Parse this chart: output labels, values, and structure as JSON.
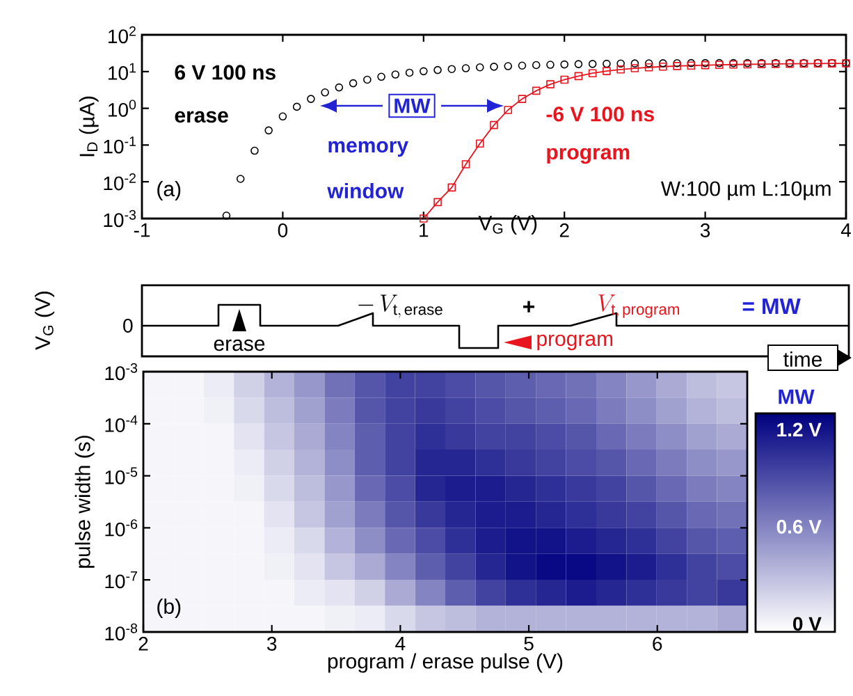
{
  "chart_data": [
    {
      "type": "scatter",
      "xlabel": "V$_{G}$ (V)",
      "ylabel": "I$_{D}$ (µA)",
      "log": "y",
      "xlim": [
        -1,
        4
      ],
      "ylim": [
        0.001,
        100
      ],
      "xticks": [
        -1,
        0,
        1,
        2,
        3,
        4
      ],
      "yticks": [
        {
          "value": 0.001,
          "label": "10$^{-3}$"
        },
        {
          "value": 0.01,
          "label": "10$^{-2}$"
        },
        {
          "value": 0.1,
          "label": "10$^{-1}$"
        },
        {
          "value": 1,
          "label": "10$^{0}$"
        },
        {
          "value": 10,
          "label": "10$^{1}$"
        },
        {
          "value": 100,
          "label": "10$^{2}$"
        }
      ],
      "series": [
        {
          "type": "scatter",
          "marker": "circle",
          "color": "#000000",
          "x": [
            -0.4,
            -0.3,
            -0.2,
            -0.1,
            0,
            0.1,
            0.2,
            0.3,
            0.4,
            0.5,
            0.6,
            0.7,
            0.8,
            0.9,
            1.0,
            1.1,
            1.2,
            1.3,
            1.4,
            1.5,
            1.6,
            1.7,
            1.8,
            1.9,
            2.0,
            2.1,
            2.2,
            2.3,
            2.4,
            2.5,
            2.6,
            2.7,
            2.8,
            2.9,
            3.0,
            3.1,
            3.2,
            3.3,
            3.4,
            3.5,
            3.6,
            3.7,
            3.8,
            3.9,
            4.0
          ],
          "values": [
            0.0012,
            0.012,
            0.07,
            0.25,
            0.6,
            1.1,
            1.8,
            2.7,
            3.7,
            4.8,
            6,
            7.2,
            8.3,
            9.3,
            10.2,
            11,
            11.7,
            12.3,
            13,
            13.5,
            14,
            14.5,
            15,
            15.3,
            15.6,
            15.9,
            16.1,
            16.3,
            16.5,
            16.6,
            16.7,
            16.8,
            16.9,
            17,
            17,
            17,
            17,
            17,
            17,
            17,
            17,
            17,
            17,
            17,
            17
          ]
        },
        {
          "type": "line",
          "marker": "square",
          "line_style": "solid",
          "color": "#e8141e",
          "x": [
            1.0,
            1.1,
            1.2,
            1.3,
            1.4,
            1.5,
            1.6,
            1.7,
            1.8,
            1.9,
            2.0,
            2.1,
            2.2,
            2.3,
            2.4,
            2.5,
            2.6,
            2.7,
            2.8,
            2.9,
            3.0,
            3.1,
            3.2,
            3.3,
            3.4,
            3.5,
            3.6,
            3.7,
            3.8,
            3.9,
            4.0
          ],
          "values": [
            0.001,
            0.0028,
            0.007,
            0.03,
            0.11,
            0.35,
            0.9,
            1.8,
            3,
            4.5,
            6,
            7.5,
            9,
            10.3,
            11.4,
            12.3,
            13,
            13.6,
            14.1,
            14.5,
            14.9,
            15.2,
            15.5,
            15.7,
            15.9,
            16.1,
            16.3,
            16.4,
            16.5,
            16.6,
            16.7
          ]
        }
      ],
      "annotations": [
        "6 V 100 ns",
        "erase",
        "MW",
        "memory",
        "window",
        "-6 V 100 ns",
        "program",
        "W:100 µm L:10µm",
        "(a)"
      ]
    },
    {
      "type": "other",
      "ylabel": "V$_{G}$ (V)",
      "annotations": [
        "0",
        "erase",
        "-\\,V_{\\mathrm{t,\\,erase}}",
        "+",
        "V_{\\mathrm{t,\\,program}}",
        "= MW",
        "program",
        "time"
      ]
    },
    {
      "type": "heatmap",
      "xlabel": "program / erase pulse (V)",
      "ylabel": "pulse width (s)",
      "clabel": "MW",
      "log": "y",
      "xlim": [
        2,
        6.7
      ],
      "ylim": [
        1e-08,
        0.001
      ],
      "xticks": [
        2,
        3,
        4,
        5,
        6
      ],
      "yticks": [
        {
          "value": 1e-08,
          "label": "10$^{-8}$"
        },
        {
          "value": 1e-07,
          "label": "10$^{-7}$"
        },
        {
          "value": 1e-06,
          "label": "10$^{-6}$"
        },
        {
          "value": 1e-05,
          "label": "10$^{-5}$"
        },
        {
          "value": 0.0001,
          "label": "10$^{-4}$"
        },
        {
          "value": 0.001,
          "label": "10$^{-3}$"
        }
      ],
      "clim": [
        -0.05,
        1.3
      ],
      "cticks": [
        {
          "value": 0,
          "label": "0 V"
        },
        {
          "value": 0.6,
          "label": "0.6 V"
        },
        {
          "value": 1.2,
          "label": "1.2 V"
        }
      ],
      "x": [
        2.12,
        2.35,
        2.59,
        2.82,
        3.06,
        3.29,
        3.53,
        3.76,
        4.0,
        4.23,
        4.47,
        4.7,
        4.94,
        5.17,
        5.41,
        5.64,
        5.88,
        6.11,
        6.35,
        6.58
      ],
      "y": [
        0.00056,
        0.00018,
        5.6e-05,
        1.8e-05,
        5.6e-06,
        1.8e-06,
        5.6e-07,
        1.8e-07,
        5.6e-08,
        1.8e-08
      ],
      "cells": [
        [
          0,
          0,
          0.05,
          0.2,
          0.35,
          0.5,
          0.7,
          0.85,
          0.95,
          0.95,
          0.9,
          0.85,
          0.8,
          0.75,
          0.7,
          0.6,
          0.5,
          0.4,
          0.3,
          0.25
        ],
        [
          0,
          0,
          0.03,
          0.15,
          0.3,
          0.45,
          0.65,
          0.85,
          0.95,
          1.0,
          0.95,
          0.9,
          0.85,
          0.8,
          0.75,
          0.65,
          0.55,
          0.45,
          0.35,
          0.3
        ],
        [
          0,
          0,
          0,
          0.1,
          0.25,
          0.4,
          0.6,
          0.8,
          0.95,
          1.05,
          1.0,
          0.95,
          0.95,
          0.9,
          0.85,
          0.75,
          0.65,
          0.55,
          0.45,
          0.4
        ],
        [
          0,
          0,
          0,
          0.05,
          0.2,
          0.35,
          0.55,
          0.8,
          0.95,
          1.1,
          1.1,
          1.05,
          1.0,
          0.95,
          0.9,
          0.85,
          0.75,
          0.65,
          0.55,
          0.5
        ],
        [
          0,
          0,
          0,
          0.03,
          0.15,
          0.3,
          0.5,
          0.75,
          0.9,
          1.1,
          1.15,
          1.15,
          1.1,
          1.05,
          1.0,
          0.95,
          0.85,
          0.75,
          0.65,
          0.6
        ],
        [
          0,
          0,
          0,
          0,
          0.1,
          0.25,
          0.45,
          0.65,
          0.85,
          1.0,
          1.1,
          1.15,
          1.15,
          1.1,
          1.05,
          1.0,
          0.95,
          0.85,
          0.75,
          0.7
        ],
        [
          0,
          0,
          0,
          0,
          0.05,
          0.15,
          0.35,
          0.55,
          0.75,
          0.9,
          1.05,
          1.15,
          1.2,
          1.2,
          1.15,
          1.1,
          1.05,
          0.95,
          0.85,
          0.8
        ],
        [
          0,
          0,
          0,
          0,
          0.03,
          0.1,
          0.25,
          0.4,
          0.6,
          0.8,
          0.95,
          1.1,
          1.2,
          1.25,
          1.25,
          1.2,
          1.15,
          1.05,
          0.95,
          0.9
        ],
        [
          0,
          0,
          0,
          0,
          0,
          0.05,
          0.1,
          0.2,
          0.4,
          0.6,
          0.8,
          0.95,
          1.05,
          1.1,
          1.15,
          1.1,
          1.05,
          1.0,
          0.95,
          1.0
        ],
        [
          0,
          0,
          0,
          0,
          0,
          0,
          0.03,
          0.05,
          0.15,
          0.25,
          0.3,
          0.35,
          0.35,
          0.35,
          0.35,
          0.35,
          0.35,
          0.35,
          0.35,
          0.4
        ]
      ],
      "annotations": [
        "(b)"
      ]
    }
  ]
}
